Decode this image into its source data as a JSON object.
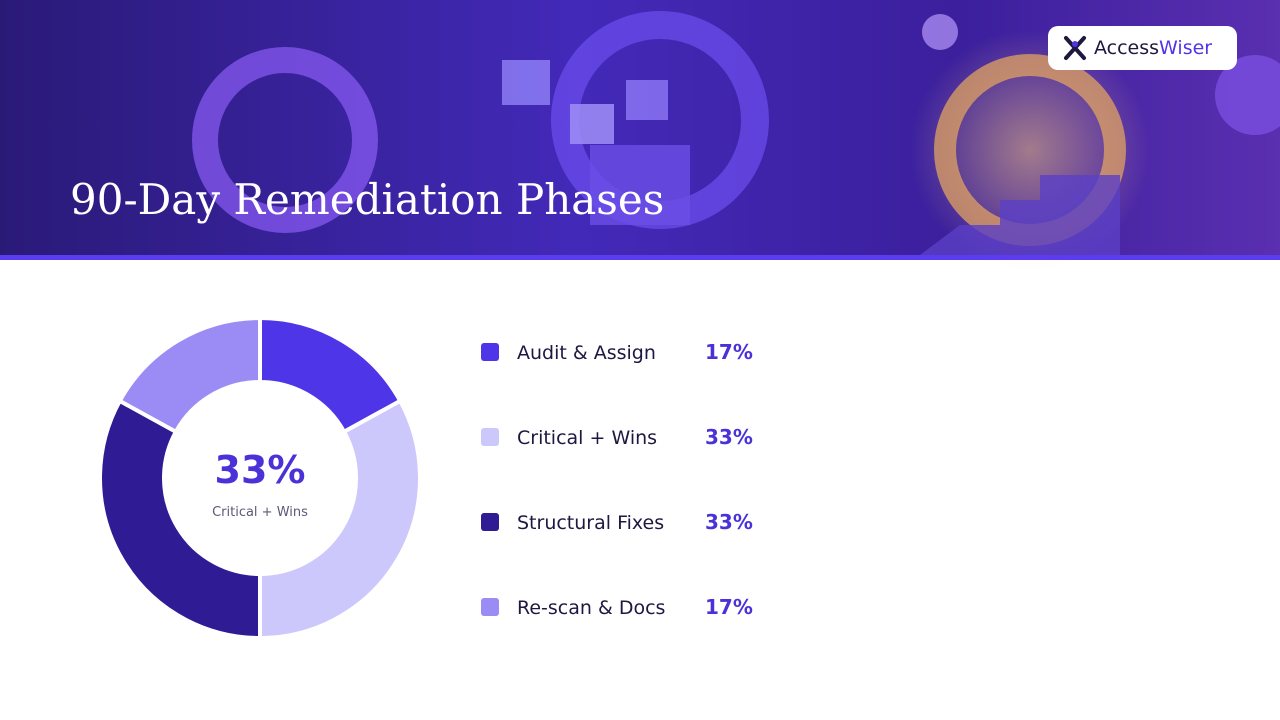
{
  "header": {
    "title": "90-Day Remediation Phases",
    "brand": {
      "first": "Access",
      "second": "Wiser"
    }
  },
  "chart_data": {
    "type": "pie",
    "categories": [
      "Audit & Assign",
      "Critical + Wins",
      "Structural Fixes",
      "Re-scan & Docs"
    ],
    "values": [
      17,
      33,
      33,
      17
    ],
    "value_labels": [
      "17%",
      "33%",
      "33%",
      "17%"
    ],
    "colors": [
      "#4f35e8",
      "#cdc8fb",
      "#2f1c94",
      "#9b8cf5"
    ]
  }
}
